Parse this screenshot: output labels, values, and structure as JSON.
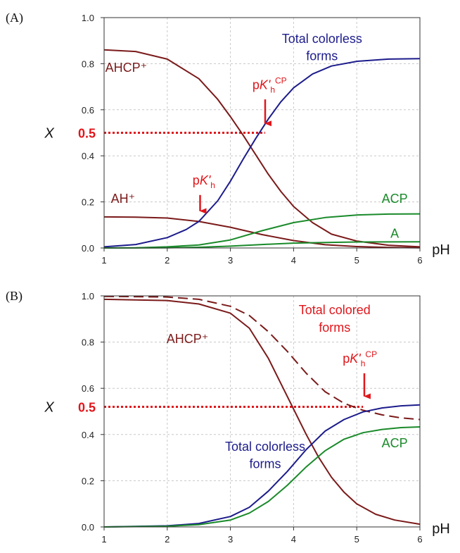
{
  "colors": {
    "ahcp": "#7b1a1a",
    "colorless": "#1c1c8c",
    "acp": "#1a8a2a",
    "colored": "#7b1a1a",
    "marker": "#e0161b"
  },
  "chart_data": [
    {
      "panel_label": "(A)",
      "type": "line",
      "xlim": [
        1,
        6
      ],
      "ylim": [
        0,
        1
      ],
      "xticks": [
        "1",
        "2",
        "3",
        "4",
        "5",
        "6"
      ],
      "yticks": [
        "0.0",
        "0.2",
        "0.4",
        "0.6",
        "0.8",
        "1.0"
      ],
      "xlabel": "pH",
      "ylabel": "X",
      "grid": true,
      "half_line": {
        "y": 0.5,
        "x_end": 3.55,
        "label": "0.5"
      },
      "series": [
        {
          "name": "AHCP+",
          "color_key": "ahcp",
          "dashed": false,
          "points": [
            [
              1.0,
              0.86
            ],
            [
              1.5,
              0.853
            ],
            [
              2.0,
              0.82
            ],
            [
              2.5,
              0.735
            ],
            [
              2.8,
              0.645
            ],
            [
              3.0,
              0.57
            ],
            [
              3.2,
              0.49
            ],
            [
              3.4,
              0.405
            ],
            [
              3.6,
              0.32
            ],
            [
              3.8,
              0.245
            ],
            [
              4.0,
              0.18
            ],
            [
              4.3,
              0.11
            ],
            [
              4.6,
              0.06
            ],
            [
              5.0,
              0.03
            ],
            [
              5.5,
              0.012
            ],
            [
              6.0,
              0.005
            ]
          ]
        },
        {
          "name": "AH+",
          "color_key": "ahcp",
          "dashed": false,
          "points": [
            [
              1.0,
              0.135
            ],
            [
              1.5,
              0.134
            ],
            [
              2.0,
              0.13
            ],
            [
              2.5,
              0.115
            ],
            [
              3.0,
              0.09
            ],
            [
              3.5,
              0.058
            ],
            [
              4.0,
              0.032
            ],
            [
              4.5,
              0.014
            ],
            [
              5.0,
              0.006
            ],
            [
              5.5,
              0.002
            ],
            [
              6.0,
              0.001
            ]
          ]
        },
        {
          "name": "Total colorless forms",
          "color_key": "colorless",
          "dashed": false,
          "points": [
            [
              1.0,
              0.005
            ],
            [
              1.5,
              0.015
            ],
            [
              2.0,
              0.045
            ],
            [
              2.3,
              0.08
            ],
            [
              2.5,
              0.115
            ],
            [
              2.8,
              0.205
            ],
            [
              3.0,
              0.29
            ],
            [
              3.2,
              0.385
            ],
            [
              3.4,
              0.475
            ],
            [
              3.6,
              0.56
            ],
            [
              3.8,
              0.635
            ],
            [
              4.0,
              0.695
            ],
            [
              4.3,
              0.755
            ],
            [
              4.6,
              0.79
            ],
            [
              5.0,
              0.81
            ],
            [
              5.5,
              0.82
            ],
            [
              6.0,
              0.822
            ]
          ]
        },
        {
          "name": "ACP",
          "color_key": "acp",
          "dashed": false,
          "points": [
            [
              1.0,
              0.0
            ],
            [
              1.5,
              0.001
            ],
            [
              2.0,
              0.005
            ],
            [
              2.5,
              0.013
            ],
            [
              3.0,
              0.035
            ],
            [
              3.5,
              0.075
            ],
            [
              4.0,
              0.11
            ],
            [
              4.5,
              0.132
            ],
            [
              5.0,
              0.143
            ],
            [
              5.5,
              0.147
            ],
            [
              6.0,
              0.148
            ]
          ]
        },
        {
          "name": "A",
          "color_key": "acp",
          "dashed": false,
          "points": [
            [
              1.0,
              0.0
            ],
            [
              2.0,
              0.001
            ],
            [
              2.5,
              0.003
            ],
            [
              3.0,
              0.008
            ],
            [
              3.5,
              0.015
            ],
            [
              4.0,
              0.021
            ],
            [
              4.5,
              0.024
            ],
            [
              5.0,
              0.026
            ],
            [
              6.0,
              0.027
            ]
          ]
        }
      ],
      "annotations": [
        {
          "text": "AHCP⁺",
          "color_key": "ahcp",
          "x": 1.35,
          "y": 0.765
        },
        {
          "text": "AH⁺",
          "color_key": "ahcp",
          "x": 1.3,
          "y": 0.195
        },
        {
          "text": "Total colorless",
          "color_key": "colorless",
          "x": 4.45,
          "y": 0.89
        },
        {
          "text": "forms",
          "color_key": "colorless",
          "x": 4.45,
          "y": 0.815
        },
        {
          "text": "ACP",
          "color_key": "acp",
          "x": 5.6,
          "y": 0.195
        },
        {
          "text": "A",
          "color_key": "acp",
          "x": 5.6,
          "y": 0.045
        },
        {
          "text": "pK'h",
          "color_key": "marker",
          "x": 2.58,
          "y": 0.275,
          "sub": "h",
          "sup": ""
        },
        {
          "text": "pK'hCP",
          "color_key": "marker",
          "x": 3.62,
          "y": 0.69,
          "sub": "h",
          "sup": "CP"
        }
      ],
      "arrows": [
        {
          "x": 2.52,
          "y_from": 0.23,
          "y_to": 0.13
        },
        {
          "x": 3.55,
          "y_from": 0.645,
          "y_to": 0.51
        }
      ]
    },
    {
      "panel_label": "(B)",
      "type": "line",
      "xlim": [
        1,
        6
      ],
      "ylim": [
        0,
        1
      ],
      "xticks": [
        "1",
        "2",
        "3",
        "4",
        "5",
        "6"
      ],
      "yticks": [
        "0.0",
        "0.2",
        "0.4",
        "0.6",
        "0.8",
        "1.0"
      ],
      "xlabel": "pH",
      "ylabel": "X",
      "grid": true,
      "half_line": {
        "y": 0.52,
        "x_end": 5.1,
        "label": "0.5"
      },
      "series": [
        {
          "name": "AHCP+",
          "color_key": "ahcp",
          "dashed": false,
          "points": [
            [
              1.0,
              0.985
            ],
            [
              2.0,
              0.98
            ],
            [
              2.5,
              0.965
            ],
            [
              3.0,
              0.925
            ],
            [
              3.3,
              0.86
            ],
            [
              3.6,
              0.73
            ],
            [
              3.8,
              0.62
            ],
            [
              4.0,
              0.51
            ],
            [
              4.2,
              0.4
            ],
            [
              4.4,
              0.3
            ],
            [
              4.6,
              0.215
            ],
            [
              4.8,
              0.15
            ],
            [
              5.0,
              0.1
            ],
            [
              5.3,
              0.055
            ],
            [
              5.6,
              0.03
            ],
            [
              6.0,
              0.012
            ]
          ]
        },
        {
          "name": "Total colored forms",
          "color_key": "colored",
          "dashed": true,
          "points": [
            [
              1.0,
              0.998
            ],
            [
              2.0,
              0.995
            ],
            [
              2.5,
              0.985
            ],
            [
              3.0,
              0.955
            ],
            [
              3.3,
              0.915
            ],
            [
              3.6,
              0.845
            ],
            [
              3.9,
              0.76
            ],
            [
              4.2,
              0.665
            ],
            [
              4.5,
              0.585
            ],
            [
              4.8,
              0.535
            ],
            [
              5.1,
              0.505
            ],
            [
              5.4,
              0.485
            ],
            [
              5.7,
              0.472
            ],
            [
              6.0,
              0.465
            ]
          ]
        },
        {
          "name": "Total colorless forms",
          "color_key": "colorless",
          "dashed": false,
          "points": [
            [
              1.0,
              0.0
            ],
            [
              2.0,
              0.005
            ],
            [
              2.5,
              0.015
            ],
            [
              3.0,
              0.045
            ],
            [
              3.3,
              0.085
            ],
            [
              3.6,
              0.155
            ],
            [
              3.9,
              0.24
            ],
            [
              4.2,
              0.335
            ],
            [
              4.5,
              0.415
            ],
            [
              4.8,
              0.465
            ],
            [
              5.1,
              0.498
            ],
            [
              5.4,
              0.515
            ],
            [
              5.7,
              0.524
            ],
            [
              6.0,
              0.528
            ]
          ]
        },
        {
          "name": "ACP",
          "color_key": "acp",
          "dashed": false,
          "points": [
            [
              1.0,
              0.0
            ],
            [
              2.0,
              0.003
            ],
            [
              2.5,
              0.01
            ],
            [
              3.0,
              0.03
            ],
            [
              3.3,
              0.06
            ],
            [
              3.6,
              0.11
            ],
            [
              3.9,
              0.18
            ],
            [
              4.2,
              0.26
            ],
            [
              4.5,
              0.33
            ],
            [
              4.8,
              0.38
            ],
            [
              5.1,
              0.408
            ],
            [
              5.4,
              0.422
            ],
            [
              5.7,
              0.43
            ],
            [
              6.0,
              0.433
            ]
          ]
        }
      ],
      "annotations": [
        {
          "text": "AHCP⁺",
          "color_key": "ahcp",
          "x": 2.32,
          "y": 0.795
        },
        {
          "text": "Total colored",
          "color_key": "marker",
          "x": 4.65,
          "y": 0.92
        },
        {
          "text": "forms",
          "color_key": "marker",
          "x": 4.65,
          "y": 0.845
        },
        {
          "text": "Total colorless",
          "color_key": "colorless",
          "x": 3.55,
          "y": 0.33
        },
        {
          "text": "forms",
          "color_key": "colorless",
          "x": 3.55,
          "y": 0.255
        },
        {
          "text": "ACP",
          "color_key": "acp",
          "x": 5.6,
          "y": 0.345
        },
        {
          "text": "pK'hCP",
          "color_key": "marker",
          "x": 5.05,
          "y": 0.71,
          "sub": "h",
          "sup": "CP"
        }
      ],
      "arrows": [
        {
          "x": 5.12,
          "y_from": 0.665,
          "y_to": 0.535
        }
      ]
    }
  ]
}
